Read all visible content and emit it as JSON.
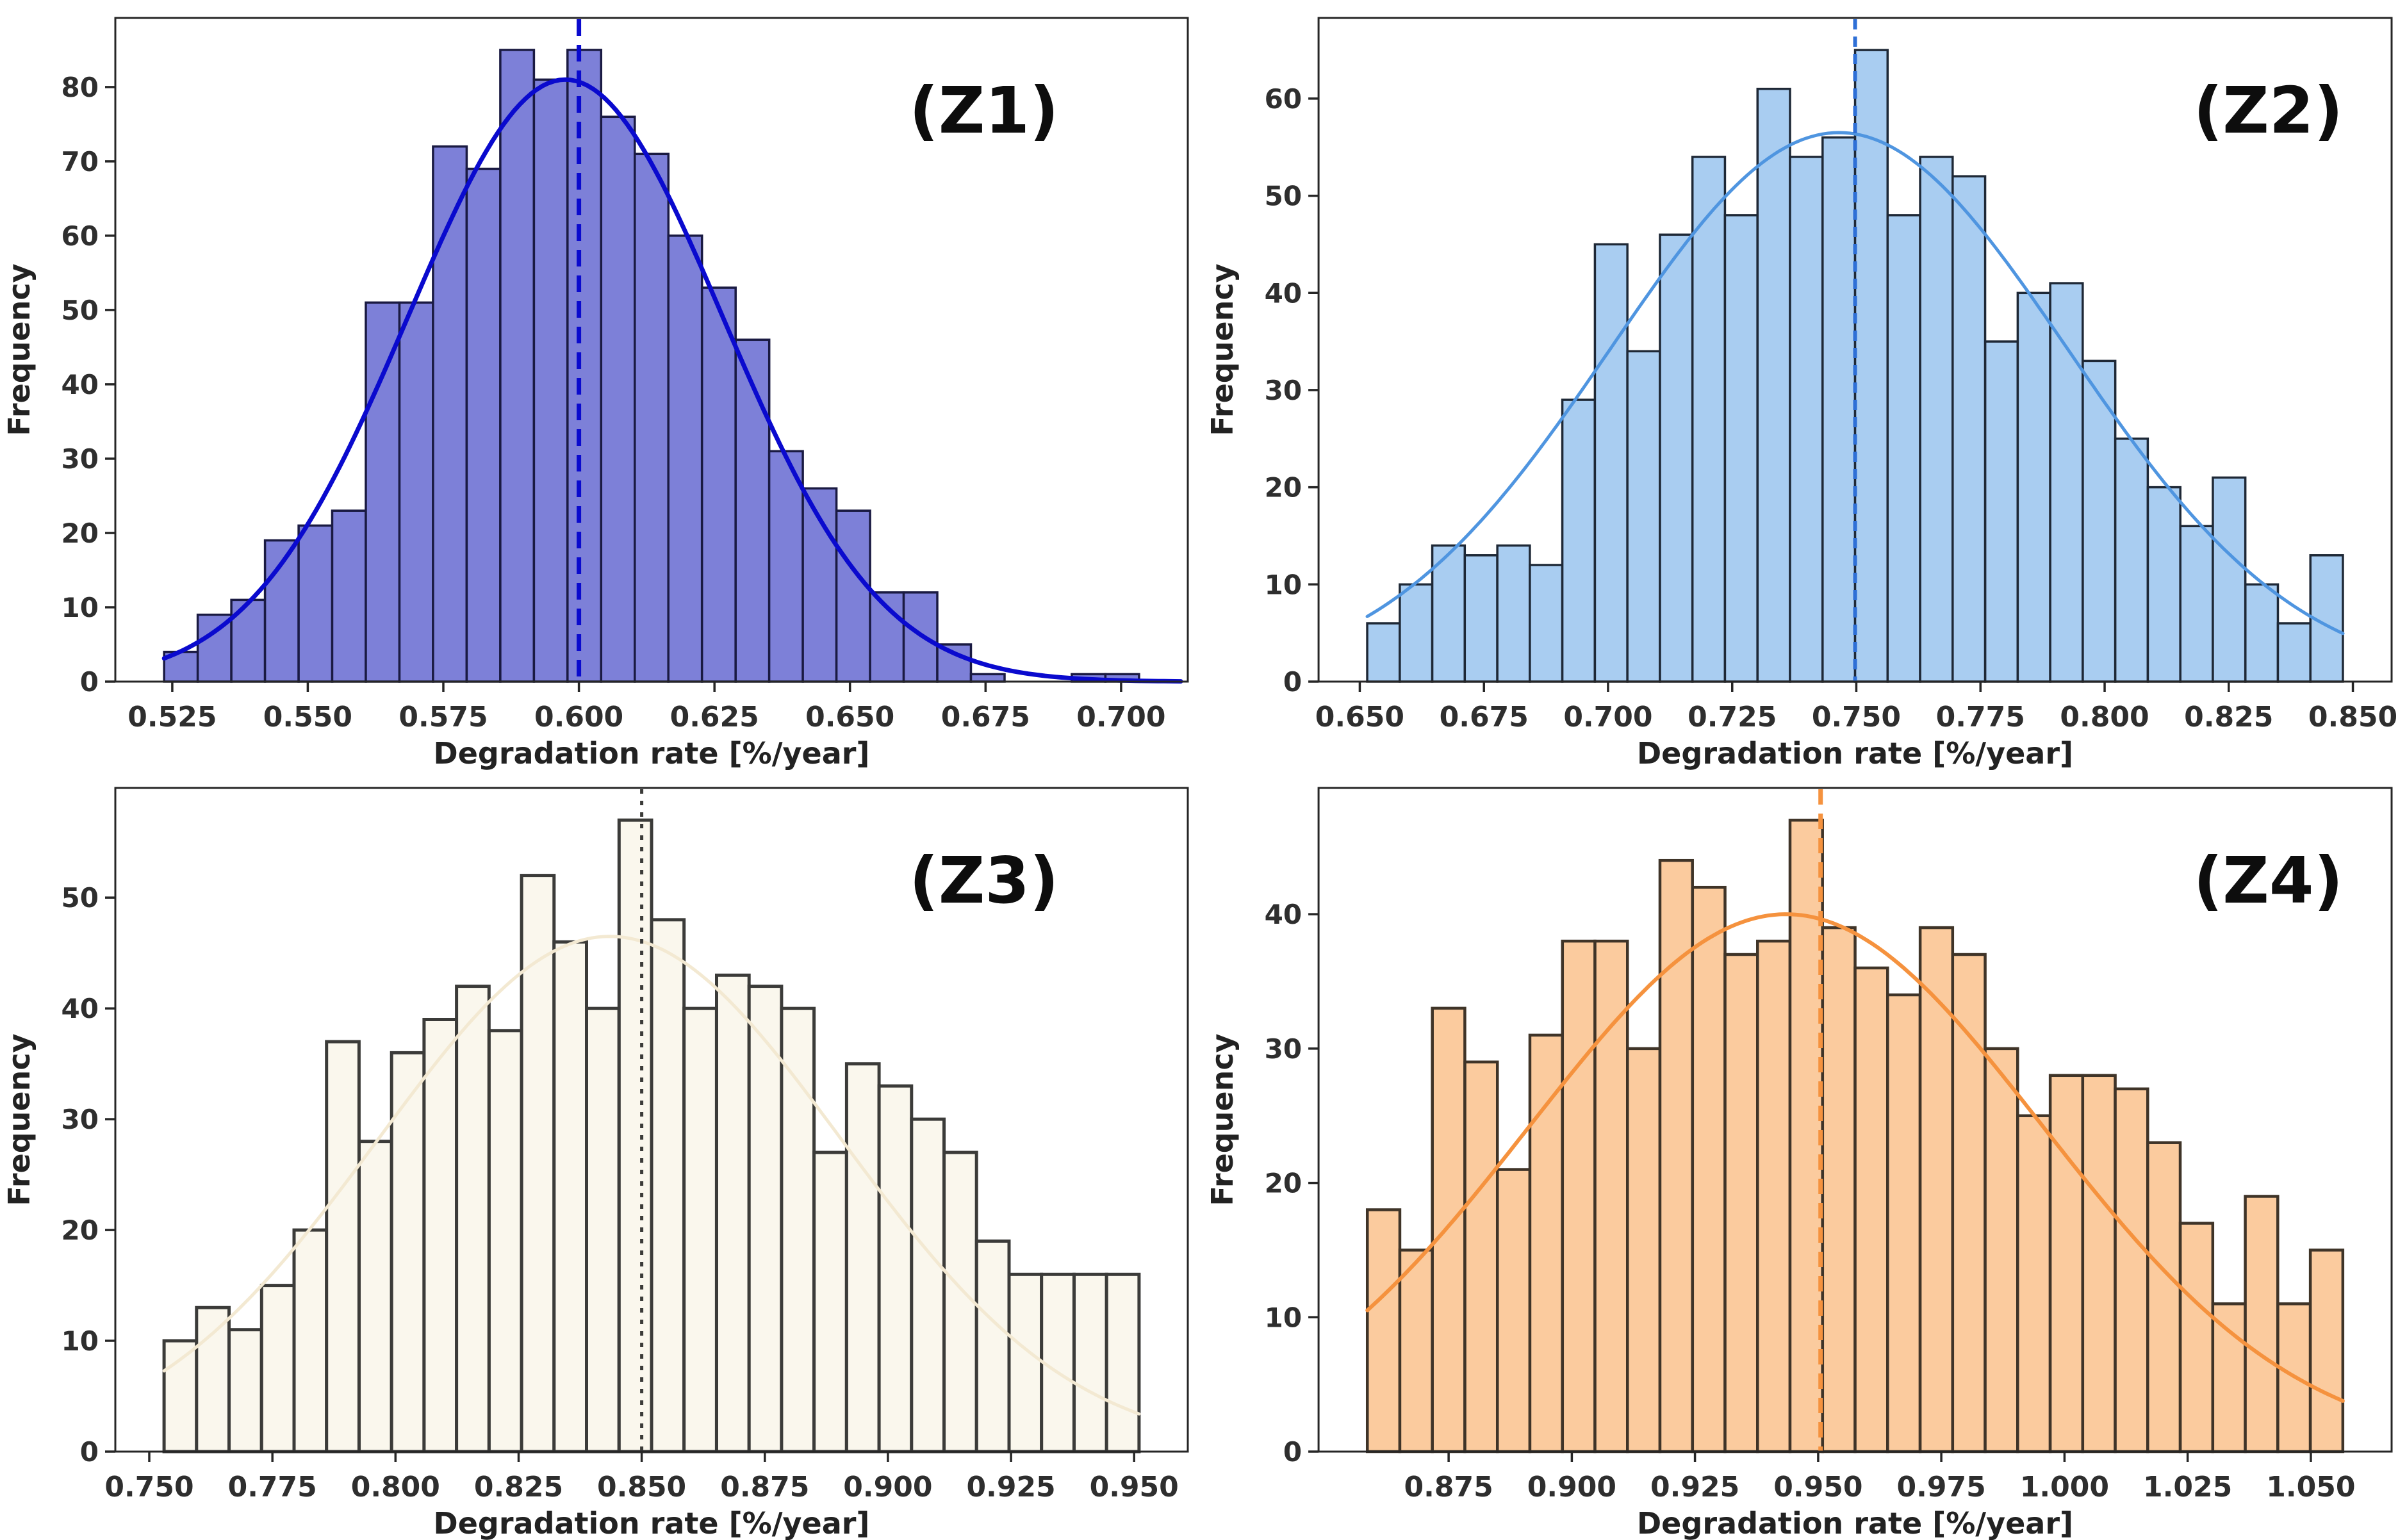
{
  "figure": {
    "background": "#ffffff",
    "frame_color": "#262626",
    "tick_color": "#2e2e2e",
    "text_color": "#222222"
  },
  "chart_data": [
    {
      "type": "bar",
      "id": "Z1",
      "panel_label": "(Z1)",
      "xlabel": "Degradation rate [%/year]",
      "ylabel": "Frequency",
      "bin_start": 0.5235,
      "bin_width": 0.0062,
      "values": [
        4,
        9,
        11,
        19,
        21,
        23,
        51,
        51,
        72,
        69,
        85,
        81,
        85,
        76,
        71,
        60,
        53,
        46,
        31,
        26,
        23,
        12,
        12,
        5,
        1,
        0,
        0,
        1,
        1
      ],
      "kde": {
        "mean": 0.5975,
        "sigma": 0.029,
        "peak": 81
      },
      "kde_domain": [
        0.5235,
        0.711
      ],
      "mean_line": 0.6,
      "xlim": [
        0.5145,
        0.7123
      ],
      "ylim": [
        0,
        89.3
      ],
      "xticks": [
        0.525,
        0.55,
        0.575,
        0.6,
        0.625,
        0.65,
        0.675,
        0.7
      ],
      "xtick_labels": [
        "0.525",
        "0.550",
        "0.575",
        "0.600",
        "0.625",
        "0.650",
        "0.675",
        "0.700"
      ],
      "yticks": [
        0,
        10,
        20,
        30,
        40,
        50,
        60,
        70,
        80
      ],
      "ytick_labels": [
        "0",
        "10",
        "20",
        "30",
        "40",
        "50",
        "60",
        "70",
        "80"
      ],
      "colors": {
        "fill": "#7d80d8",
        "edge": "#1a1a42",
        "kde": "#0a0ace",
        "mean": "#0a0ace"
      },
      "edge_width": 3.5,
      "kde_width": 7,
      "mean_width": 7,
      "mean_dash": "26 14",
      "panel_label_x": 0.81,
      "panel_label_y": 0.14
    },
    {
      "type": "bar",
      "id": "Z2",
      "panel_label": "(Z2)",
      "xlabel": "Degradation rate [%/year]",
      "ylabel": "Frequency",
      "bin_start": 0.6515,
      "bin_width": 0.00655,
      "values": [
        6,
        10,
        14,
        13,
        14,
        12,
        29,
        45,
        34,
        46,
        54,
        48,
        61,
        54,
        56,
        65,
        48,
        54,
        52,
        35,
        40,
        41,
        33,
        25,
        20,
        16,
        21,
        10,
        6,
        13
      ],
      "kde": {
        "mean": 0.7465,
        "sigma": 0.046,
        "peak": 56.5
      },
      "kde_domain": [
        0.6515,
        0.848
      ],
      "mean_line": 0.74975,
      "xlim": [
        0.6417,
        0.8578
      ],
      "ylim": [
        0,
        68.3
      ],
      "xticks": [
        0.65,
        0.675,
        0.7,
        0.725,
        0.75,
        0.775,
        0.8,
        0.825,
        0.85
      ],
      "xtick_labels": [
        "0.650",
        "0.675",
        "0.700",
        "0.725",
        "0.750",
        "0.775",
        "0.800",
        "0.825",
        "0.850"
      ],
      "yticks": [
        0,
        10,
        20,
        30,
        40,
        50,
        60
      ],
      "ytick_labels": [
        "0",
        "10",
        "20",
        "30",
        "40",
        "50",
        "60"
      ],
      "colors": {
        "fill": "#a9cdf1",
        "edge": "#1e2836",
        "kde": "#4f95e0",
        "mean": "#2e6fd6"
      },
      "edge_width": 3.5,
      "kde_width": 5,
      "mean_width": 6,
      "mean_dash": "16 11",
      "panel_label_x": 0.885,
      "panel_label_y": 0.14
    },
    {
      "type": "bar",
      "id": "Z3",
      "panel_label": "(Z3)",
      "xlabel": "Degradation rate [%/year]",
      "ylabel": "Frequency",
      "bin_start": 0.753,
      "bin_width": 0.0066,
      "values": [
        10,
        13,
        11,
        15,
        20,
        37,
        28,
        36,
        39,
        42,
        38,
        52,
        46,
        40,
        57,
        48,
        40,
        43,
        42,
        40,
        27,
        35,
        33,
        30,
        27,
        19,
        16,
        16,
        16,
        16
      ],
      "kde": {
        "mean": 0.8435,
        "sigma": 0.047,
        "peak": 46.5
      },
      "kde_domain": [
        0.753,
        0.951
      ],
      "mean_line": 0.85,
      "xlim": [
        0.7431,
        0.9609
      ],
      "ylim": [
        0,
        59.9
      ],
      "xticks": [
        0.75,
        0.775,
        0.8,
        0.825,
        0.85,
        0.875,
        0.9,
        0.925,
        0.95
      ],
      "xtick_labels": [
        "0.750",
        "0.775",
        "0.800",
        "0.825",
        "0.850",
        "0.875",
        "0.900",
        "0.925",
        "0.950"
      ],
      "yticks": [
        0,
        10,
        20,
        30,
        40,
        50
      ],
      "ytick_labels": [
        "0",
        "10",
        "20",
        "30",
        "40",
        "50"
      ],
      "colors": {
        "fill": "#faf7ed",
        "edge": "#3b3b39",
        "kde": "#f3e9d2",
        "mean": "#3b3b39"
      },
      "edge_width": 5,
      "kde_width": 5,
      "mean_width": 5,
      "mean_dash": "7 11",
      "panel_label_x": 0.81,
      "panel_label_y": 0.14
    },
    {
      "type": "bar",
      "id": "Z4",
      "panel_label": "(Z4)",
      "xlabel": "Degradation rate [%/year]",
      "ylabel": "Frequency",
      "bin_start": 0.8585,
      "bin_width": 0.0066,
      "values": [
        18,
        15,
        33,
        29,
        21,
        31,
        38,
        38,
        30,
        44,
        42,
        37,
        38,
        47,
        39,
        36,
        34,
        39,
        37,
        30,
        25,
        28,
        28,
        27,
        23,
        17,
        11,
        19,
        11,
        15
      ],
      "kde": {
        "mean": 0.9435,
        "sigma": 0.052,
        "peak": 40
      },
      "kde_domain": [
        0.8585,
        1.0565
      ],
      "mean_line": 0.9505,
      "xlim": [
        0.8486,
        1.0664
      ],
      "ylim": [
        0,
        49.4
      ],
      "xticks": [
        0.875,
        0.9,
        0.925,
        0.95,
        0.975,
        1.0,
        1.025,
        1.05
      ],
      "xtick_labels": [
        "0.875",
        "0.900",
        "0.925",
        "0.950",
        "0.975",
        "1.000",
        "1.025",
        "1.050"
      ],
      "yticks": [
        0,
        10,
        20,
        30,
        40
      ],
      "ytick_labels": [
        "0",
        "10",
        "20",
        "30",
        "40"
      ],
      "colors": {
        "fill": "#fbcb9e",
        "edge": "#3f3428",
        "kde": "#f5923e",
        "mean": "#f5923e"
      },
      "edge_width": 4.5,
      "kde_width": 6,
      "mean_width": 7,
      "mean_dash": "24 14",
      "panel_label_x": 0.885,
      "panel_label_y": 0.14
    }
  ]
}
